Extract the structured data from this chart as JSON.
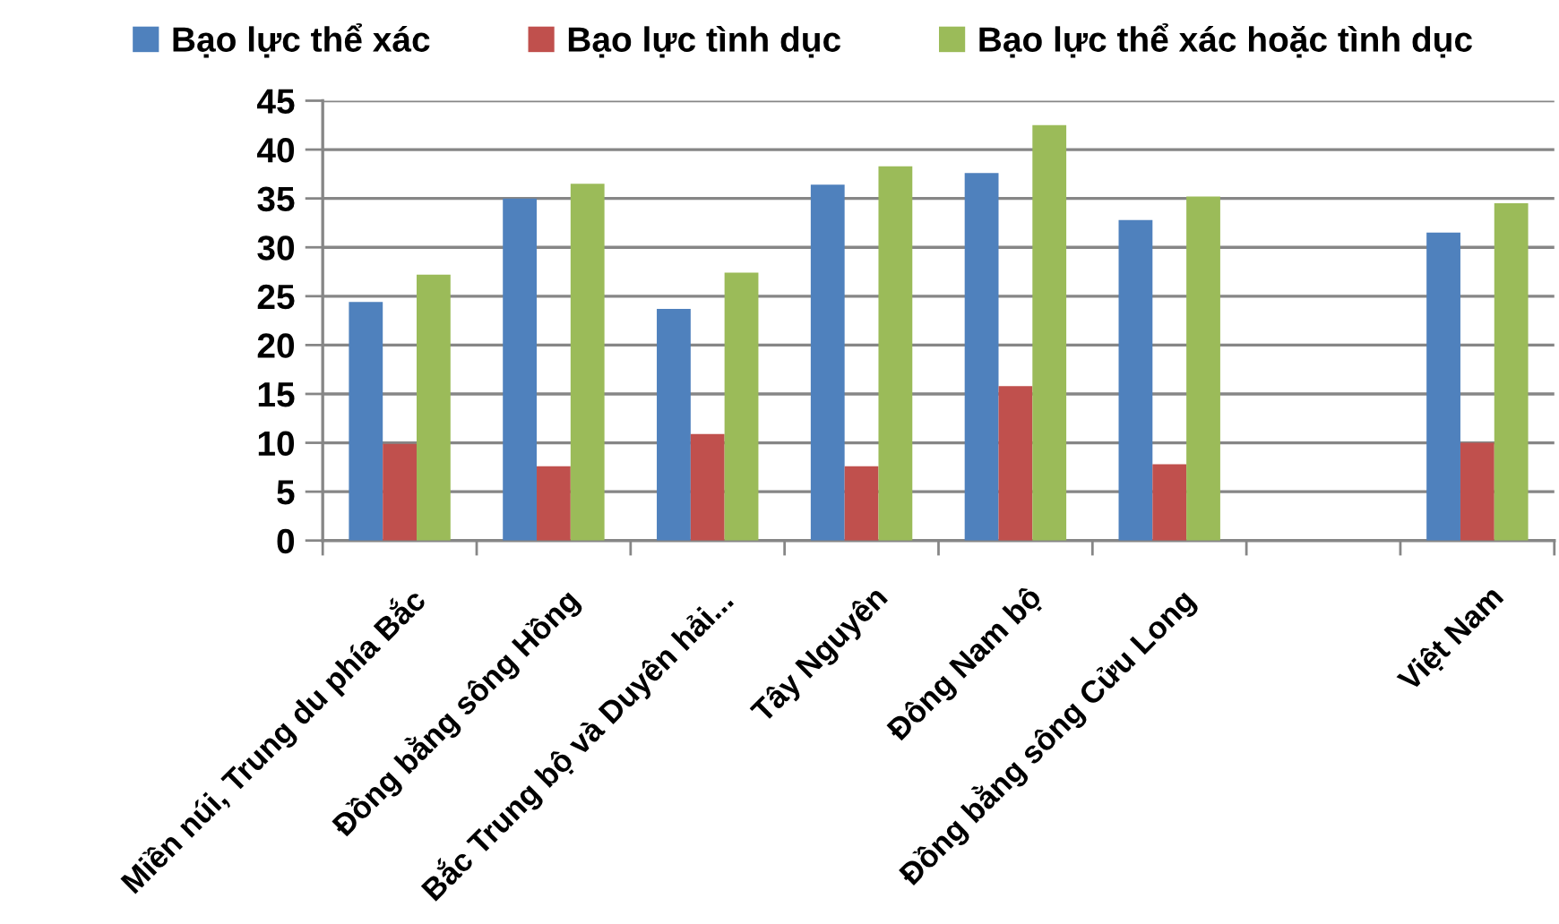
{
  "chart_data": {
    "type": "bar",
    "categories": [
      "Miền núi, Trung du phía Bắc",
      "Đồng bằng sông Hồng",
      "Bắc Trung bộ và Duyên hải...",
      "Tây Nguyên",
      "Đông Nam bộ",
      "Đồng bằng sông Cửu Long",
      null,
      "Việt Nam"
    ],
    "series": [
      {
        "name": "Bạo lực thể xác",
        "color": "#4f81bd",
        "values": [
          24.4,
          35.0,
          23.7,
          36.4,
          37.6,
          32.8,
          null,
          31.5
        ]
      },
      {
        "name": "Bạo lực tình dục",
        "color": "#c0504d",
        "values": [
          9.9,
          7.6,
          10.9,
          7.6,
          15.8,
          7.8,
          null,
          10.0
        ]
      },
      {
        "name": "Bạo lực thể xác hoặc tình dục",
        "color": "#9bbb59",
        "values": [
          27.2,
          36.5,
          27.4,
          38.3,
          42.5,
          35.2,
          null,
          34.5
        ]
      }
    ],
    "ylim": [
      0,
      45
    ],
    "yticks": [
      0,
      5,
      10,
      15,
      20,
      25,
      30,
      35,
      40,
      45
    ],
    "grid": "y",
    "legend": "top"
  }
}
